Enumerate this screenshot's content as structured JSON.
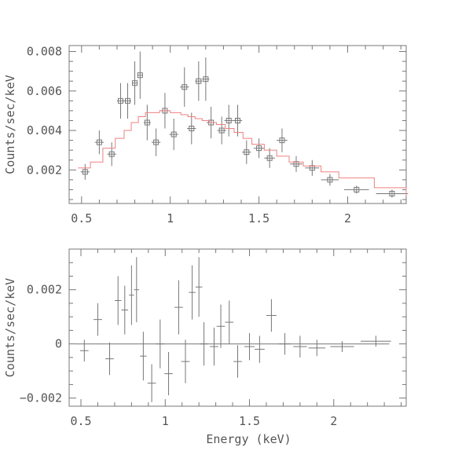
{
  "chart_data": [
    {
      "type": "scatter",
      "ylabel": "Counts/sec/keV",
      "xlabel": "",
      "xlim": [
        0.43,
        2.33
      ],
      "ylim": [
        0.0003,
        0.0083
      ],
      "xticks": [
        0.5,
        1,
        1.5,
        2
      ],
      "xtick_labels": [
        "0.5",
        "1",
        "1.5",
        "2"
      ],
      "yticks": [
        0.002,
        0.004,
        0.006,
        0.008
      ],
      "ytick_labels": [
        "0.002",
        "0.004",
        "0.006",
        "0.008"
      ],
      "series": [
        {
          "kind": "data",
          "points": [
            {
              "x": 0.52,
              "y": 0.0019,
              "xerr": 0.025,
              "yerr": 0.0004
            },
            {
              "x": 0.6,
              "y": 0.0034,
              "xerr": 0.025,
              "yerr": 0.0006
            },
            {
              "x": 0.67,
              "y": 0.0028,
              "xerr": 0.025,
              "yerr": 0.0006
            },
            {
              "x": 0.72,
              "y": 0.0055,
              "xerr": 0.02,
              "yerr": 0.0009
            },
            {
              "x": 0.76,
              "y": 0.0055,
              "xerr": 0.02,
              "yerr": 0.0009
            },
            {
              "x": 0.8,
              "y": 0.0064,
              "xerr": 0.015,
              "yerr": 0.0011
            },
            {
              "x": 0.83,
              "y": 0.0068,
              "xerr": 0.015,
              "yerr": 0.0012
            },
            {
              "x": 0.87,
              "y": 0.0044,
              "xerr": 0.02,
              "yerr": 0.0009
            },
            {
              "x": 0.92,
              "y": 0.0034,
              "xerr": 0.025,
              "yerr": 0.0007
            },
            {
              "x": 0.97,
              "y": 0.005,
              "xerr": 0.025,
              "yerr": 0.0009
            },
            {
              "x": 1.02,
              "y": 0.0038,
              "xerr": 0.025,
              "yerr": 0.0008
            },
            {
              "x": 1.08,
              "y": 0.0062,
              "xerr": 0.025,
              "yerr": 0.001
            },
            {
              "x": 1.12,
              "y": 0.0041,
              "xerr": 0.025,
              "yerr": 0.0008
            },
            {
              "x": 1.16,
              "y": 0.0065,
              "xerr": 0.02,
              "yerr": 0.001
            },
            {
              "x": 1.2,
              "y": 0.0066,
              "xerr": 0.02,
              "yerr": 0.0011
            },
            {
              "x": 1.23,
              "y": 0.0044,
              "xerr": 0.025,
              "yerr": 0.0008
            },
            {
              "x": 1.29,
              "y": 0.004,
              "xerr": 0.025,
              "yerr": 0.0007
            },
            {
              "x": 1.33,
              "y": 0.0045,
              "xerr": 0.025,
              "yerr": 0.0008
            },
            {
              "x": 1.38,
              "y": 0.0045,
              "xerr": 0.025,
              "yerr": 0.0008
            },
            {
              "x": 1.43,
              "y": 0.0029,
              "xerr": 0.025,
              "yerr": 0.0006
            },
            {
              "x": 1.5,
              "y": 0.0031,
              "xerr": 0.03,
              "yerr": 0.0005
            },
            {
              "x": 1.56,
              "y": 0.0026,
              "xerr": 0.03,
              "yerr": 0.0005
            },
            {
              "x": 1.63,
              "y": 0.0035,
              "xerr": 0.03,
              "yerr": 0.0006
            },
            {
              "x": 1.71,
              "y": 0.0023,
              "xerr": 0.035,
              "yerr": 0.0004
            },
            {
              "x": 1.8,
              "y": 0.0021,
              "xerr": 0.04,
              "yerr": 0.0004
            },
            {
              "x": 1.9,
              "y": 0.0015,
              "xerr": 0.05,
              "yerr": 0.0003
            },
            {
              "x": 2.05,
              "y": 0.001,
              "xerr": 0.07,
              "yerr": 0.0002
            },
            {
              "x": 2.25,
              "y": 0.0008,
              "xerr": 0.09,
              "yerr": 0.0002
            }
          ]
        },
        {
          "kind": "model",
          "color": "#f08080",
          "steps": [
            [
              0.48,
              0.0021
            ],
            [
              0.55,
              0.0024
            ],
            [
              0.62,
              0.0031
            ],
            [
              0.69,
              0.0036
            ],
            [
              0.74,
              0.004
            ],
            [
              0.78,
              0.0044
            ],
            [
              0.82,
              0.0047
            ],
            [
              0.86,
              0.0049
            ],
            [
              0.94,
              0.005
            ],
            [
              1.0,
              0.0049
            ],
            [
              1.06,
              0.0048
            ],
            [
              1.1,
              0.0047
            ],
            [
              1.14,
              0.0046
            ],
            [
              1.18,
              0.0045
            ],
            [
              1.22,
              0.0044
            ],
            [
              1.26,
              0.0043
            ],
            [
              1.31,
              0.0041
            ],
            [
              1.36,
              0.0039
            ],
            [
              1.41,
              0.0036
            ],
            [
              1.46,
              0.0033
            ],
            [
              1.53,
              0.003
            ],
            [
              1.6,
              0.0027
            ],
            [
              1.67,
              0.0024
            ],
            [
              1.75,
              0.0022
            ],
            [
              1.85,
              0.0019
            ],
            [
              1.95,
              0.0016
            ],
            [
              2.15,
              0.0011
            ],
            [
              2.33,
              0.0007
            ]
          ]
        }
      ]
    },
    {
      "type": "scatter",
      "ylabel": "Counts/sec/keV",
      "xlabel": "Energy (keV)",
      "xlim": [
        0.43,
        2.43
      ],
      "ylim": [
        -0.0023,
        0.0035
      ],
      "xticks": [
        0.5,
        1,
        1.5,
        2
      ],
      "xtick_labels": [
        "0.5",
        "1",
        "1.5",
        "2"
      ],
      "yticks": [
        -0.002,
        0,
        0.002
      ],
      "ytick_labels": [
        "−0.002",
        "0",
        "0.002"
      ],
      "zero_line": [
        0.47,
        2.33
      ],
      "series": [
        {
          "kind": "residuals",
          "points": [
            {
              "x": 0.52,
              "y": -0.00025,
              "xerr": 0.025,
              "yerr": 0.0004
            },
            {
              "x": 0.6,
              "y": 0.0009,
              "xerr": 0.025,
              "yerr": 0.0006
            },
            {
              "x": 0.67,
              "y": -0.00055,
              "xerr": 0.025,
              "yerr": 0.0006
            },
            {
              "x": 0.72,
              "y": 0.0016,
              "xerr": 0.02,
              "yerr": 0.0009
            },
            {
              "x": 0.76,
              "y": 0.00125,
              "xerr": 0.02,
              "yerr": 0.0009
            },
            {
              "x": 0.8,
              "y": 0.0018,
              "xerr": 0.015,
              "yerr": 0.0011
            },
            {
              "x": 0.83,
              "y": 0.002,
              "xerr": 0.015,
              "yerr": 0.0012
            },
            {
              "x": 0.87,
              "y": -0.00045,
              "xerr": 0.02,
              "yerr": 0.0009
            },
            {
              "x": 0.92,
              "y": -0.00145,
              "xerr": 0.025,
              "yerr": 0.0007
            },
            {
              "x": 0.97,
              "y": 0.0,
              "xerr": 0.025,
              "yerr": 0.0009
            },
            {
              "x": 1.02,
              "y": -0.0011,
              "xerr": 0.025,
              "yerr": 0.0008
            },
            {
              "x": 1.08,
              "y": 0.00135,
              "xerr": 0.025,
              "yerr": 0.001
            },
            {
              "x": 1.12,
              "y": -0.00065,
              "xerr": 0.025,
              "yerr": 0.0008
            },
            {
              "x": 1.16,
              "y": 0.0019,
              "xerr": 0.02,
              "yerr": 0.001
            },
            {
              "x": 1.2,
              "y": 0.0021,
              "xerr": 0.02,
              "yerr": 0.0011
            },
            {
              "x": 1.23,
              "y": 0.0,
              "xerr": 0.025,
              "yerr": 0.0008
            },
            {
              "x": 1.29,
              "y": -0.0001,
              "xerr": 0.025,
              "yerr": 0.0007
            },
            {
              "x": 1.33,
              "y": 0.00065,
              "xerr": 0.025,
              "yerr": 0.0008
            },
            {
              "x": 1.38,
              "y": 0.0008,
              "xerr": 0.025,
              "yerr": 0.0008
            },
            {
              "x": 1.43,
              "y": -0.00065,
              "xerr": 0.025,
              "yerr": 0.0006
            },
            {
              "x": 1.5,
              "y": -0.0001,
              "xerr": 0.03,
              "yerr": 0.0005
            },
            {
              "x": 1.56,
              "y": -0.0002,
              "xerr": 0.03,
              "yerr": 0.0005
            },
            {
              "x": 1.63,
              "y": 0.00105,
              "xerr": 0.03,
              "yerr": 0.0006
            },
            {
              "x": 1.71,
              "y": 0.0,
              "xerr": 0.035,
              "yerr": 0.0004
            },
            {
              "x": 1.8,
              "y": -0.0001,
              "xerr": 0.04,
              "yerr": 0.0004
            },
            {
              "x": 1.9,
              "y": -0.00015,
              "xerr": 0.05,
              "yerr": 0.0003
            },
            {
              "x": 2.05,
              "y": -0.0001,
              "xerr": 0.07,
              "yerr": 0.0002
            },
            {
              "x": 2.25,
              "y": 0.0001,
              "xerr": 0.09,
              "yerr": 0.0002
            }
          ]
        }
      ]
    }
  ]
}
